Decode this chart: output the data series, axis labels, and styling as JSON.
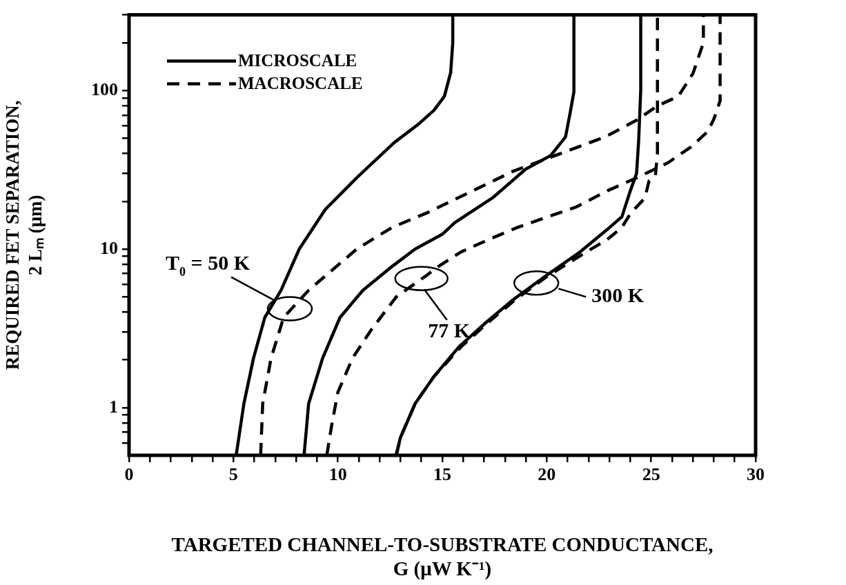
{
  "chart_data": {
    "type": "line",
    "xlabel": "TARGETED CHANNEL-TO-SUBSTRATE CONDUCTANCE, G (μW K⁻¹)",
    "ylabel": "REQUIRED FET SEPARATION, 2 Lₘ (μm)",
    "log": "y",
    "grid": false,
    "legend": "top left",
    "marker": "none",
    "xlim": [
      0,
      30
    ],
    "ylim": [
      0.5,
      300
    ],
    "xticks": [
      0,
      {
        "value": 1,
        "label": null
      },
      {
        "value": 2,
        "label": null
      },
      {
        "value": 3,
        "label": null
      },
      {
        "value": 4,
        "label": null
      },
      5,
      {
        "value": 6,
        "label": null
      },
      {
        "value": 7,
        "label": null
      },
      {
        "value": 8,
        "label": null
      },
      {
        "value": 9,
        "label": null
      },
      10,
      {
        "value": 11,
        "label": null
      },
      {
        "value": 12,
        "label": null
      },
      {
        "value": 13,
        "label": null
      },
      {
        "value": 14,
        "label": null
      },
      15,
      {
        "value": 16,
        "label": null
      },
      {
        "value": 17,
        "label": null
      },
      {
        "value": 18,
        "label": null
      },
      {
        "value": 19,
        "label": null
      },
      20,
      {
        "value": 21,
        "label": null
      },
      {
        "value": 22,
        "label": null
      },
      {
        "value": 23,
        "label": null
      },
      {
        "value": 24,
        "label": null
      },
      25,
      {
        "value": 26,
        "label": null
      },
      {
        "value": 27,
        "label": null
      },
      {
        "value": 28,
        "label": null
      },
      {
        "value": 29,
        "label": null
      },
      30
    ],
    "yticks": [
      {
        "value": 0.6,
        "label": null
      },
      {
        "value": 0.7,
        "label": null
      },
      {
        "value": 0.8,
        "label": null
      },
      {
        "value": 0.9,
        "label": null
      },
      1,
      {
        "value": 2,
        "label": null
      },
      {
        "value": 3,
        "label": null
      },
      {
        "value": 4,
        "label": null
      },
      {
        "value": 5,
        "label": null
      },
      {
        "value": 6,
        "label": null
      },
      {
        "value": 7,
        "label": null
      },
      {
        "value": 8,
        "label": null
      },
      {
        "value": 9,
        "label": null
      },
      10,
      {
        "value": 20,
        "label": null
      },
      {
        "value": 30,
        "label": null
      },
      {
        "value": 40,
        "label": null
      },
      {
        "value": 50,
        "label": null
      },
      {
        "value": 60,
        "label": null
      },
      {
        "value": 70,
        "label": null
      },
      {
        "value": 80,
        "label": null
      },
      {
        "value": 90,
        "label": null
      },
      100,
      {
        "value": 200,
        "label": null
      },
      {
        "value": 300,
        "label": null
      }
    ],
    "series": [
      {
        "name": "MICROSCALE",
        "color": "#000000",
        "line_style": "solid",
        "x": [
          5.13,
          5.5,
          5.96,
          6.5,
          7.28,
          8.15,
          9.4,
          11.0,
          12.7,
          13.9,
          14.6,
          15.1,
          15.4,
          15.5,
          15.5
        ],
        "values": [
          0.5,
          1.06,
          2.05,
          3.7,
          5.5,
          10,
          17.8,
          29,
          47,
          62,
          75,
          92,
          130,
          200,
          300
        ]
      },
      {
        "name": "MACROSCALE",
        "color": "#000000",
        "line_style": "dashed",
        "x": [
          6.3,
          6.4,
          6.8,
          7.4,
          8.6,
          10.9,
          12.6,
          14.3,
          18.4,
          22.8,
          24.3,
          25.3,
          26.3,
          27.0,
          27.5,
          27.5
        ],
        "values": [
          0.5,
          1.06,
          2.05,
          3.7,
          5.5,
          10,
          13.7,
          17,
          31,
          51,
          65,
          80,
          92,
          128,
          200,
          300
        ]
      },
      {
        "color": "#000000",
        "line_style": "solid",
        "x": [
          8.38,
          8.6,
          9.27,
          10.1,
          11.2,
          12.5,
          13.7,
          15.0,
          15.6,
          17.4,
          19.0,
          20.2,
          20.9,
          21.1,
          21.3,
          21.3
        ],
        "values": [
          0.5,
          1.06,
          2.05,
          3.7,
          5.5,
          7.6,
          10,
          12.4,
          14.7,
          21,
          32,
          39,
          51,
          70,
          98,
          300
        ]
      },
      {
        "color": "#000000",
        "line_style": "dashed",
        "x": [
          9.47,
          9.7,
          10.0,
          10.7,
          11.6,
          12.8,
          14.3,
          14.7,
          15.9,
          17.3,
          18.6,
          21.4,
          22.9,
          24.4,
          25.8,
          26.9,
          27.7,
          28.0,
          28.3,
          28.3,
          28.3
        ],
        "values": [
          0.5,
          0.77,
          1.25,
          2.05,
          3.1,
          5,
          6.9,
          7.6,
          9.6,
          11.6,
          13.7,
          18.4,
          23.3,
          28.5,
          35,
          44,
          55,
          66,
          86,
          130,
          300
        ]
      },
      {
        "color": "#000000",
        "line_style": "solid",
        "x": [
          12.78,
          13.0,
          13.7,
          14.6,
          15.8,
          17.1,
          18.4,
          19.9,
          21.6,
          22.9,
          23.6,
          24.0,
          24.3,
          24.4,
          24.5,
          24.5
        ],
        "values": [
          0.5,
          0.65,
          1.06,
          1.57,
          2.42,
          3.45,
          4.8,
          6.7,
          9.6,
          13.3,
          16,
          23.3,
          30,
          48,
          100,
          300
        ]
      },
      {
        "color": "#000000",
        "line_style": "dashed",
        "x": [
          12.8,
          13.0,
          13.7,
          14.6,
          15.9,
          17.2,
          18.5,
          20.0,
          21.9,
          22.9,
          23.6,
          24.0,
          24.7,
          24.9,
          25.2,
          25.3,
          25.3
        ],
        "values": [
          0.5,
          0.65,
          1.06,
          1.57,
          2.42,
          3.45,
          4.8,
          6.7,
          9.6,
          11.5,
          13.7,
          16.7,
          21,
          27,
          29,
          40,
          300
        ]
      }
    ],
    "annotations": [
      {
        "text": "T$_{0}$ = 50 K",
        "x": 7.7,
        "y": 4.2
      },
      {
        "text": "77 K",
        "x": 14.0,
        "y": 6.52
      },
      {
        "text": "300 K",
        "x": 19.5,
        "y": 6.1
      }
    ]
  }
}
